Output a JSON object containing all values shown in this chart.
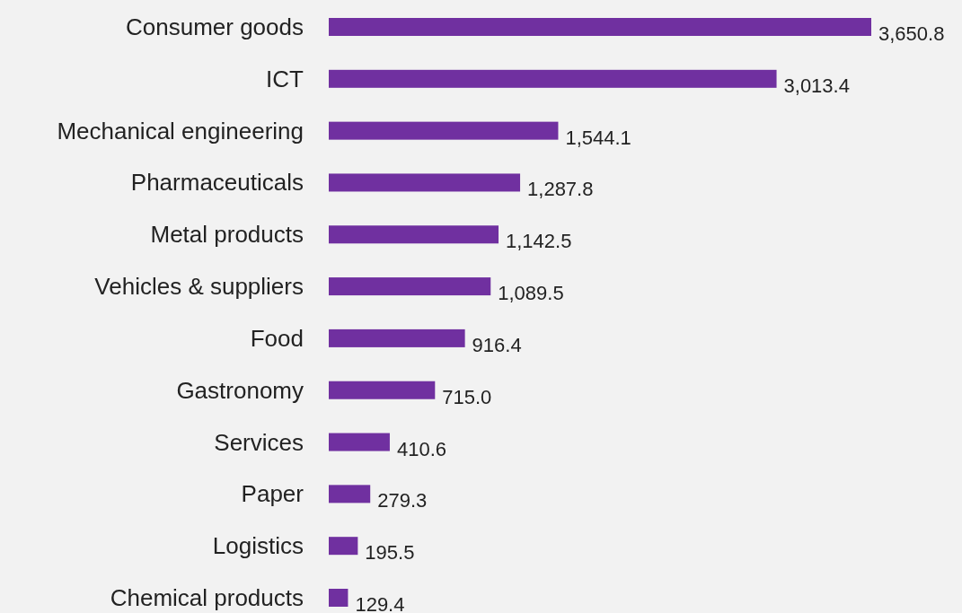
{
  "chart_data": {
    "type": "bar",
    "orientation": "horizontal",
    "data_labels": true,
    "color": "#7030a0",
    "categories": [
      "Consumer goods",
      "ICT",
      "Mechanical engineering",
      "Pharmaceuticals",
      "Metal products",
      "Vehicles & suppliers",
      "Food",
      "Gastronomy",
      "Services",
      "Paper",
      "Logistics",
      "Chemical products"
    ],
    "values": [
      3650.8,
      3013.4,
      1544.1,
      1287.8,
      1142.5,
      1089.5,
      916.4,
      715.0,
      410.6,
      279.3,
      195.5,
      129.4
    ],
    "value_labels": [
      "3,650.8",
      "3,013.4",
      "1,544.1",
      "1,287.8",
      "1,142.5",
      "1,089.5",
      "916.4",
      "715.0",
      "410.6",
      "279.3",
      "195.5",
      "129.4"
    ]
  }
}
